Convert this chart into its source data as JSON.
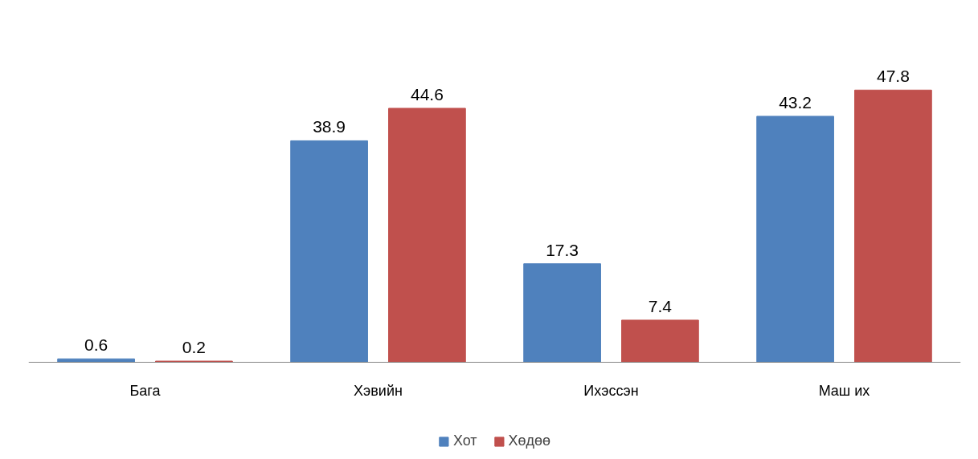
{
  "chart_data": {
    "type": "bar",
    "categories": [
      "Бага",
      "Хэвийн",
      "Ихэссэн",
      "Маш их"
    ],
    "series": [
      {
        "name": "Хот",
        "color": "#4f81bd",
        "values": [
          0.6,
          38.9,
          17.3,
          43.2
        ]
      },
      {
        "name": "Хөдөө",
        "color": "#c0504d",
        "values": [
          0.2,
          44.6,
          7.4,
          47.8
        ]
      }
    ],
    "data_labels": true,
    "legend": "bottom",
    "grid": false
  }
}
